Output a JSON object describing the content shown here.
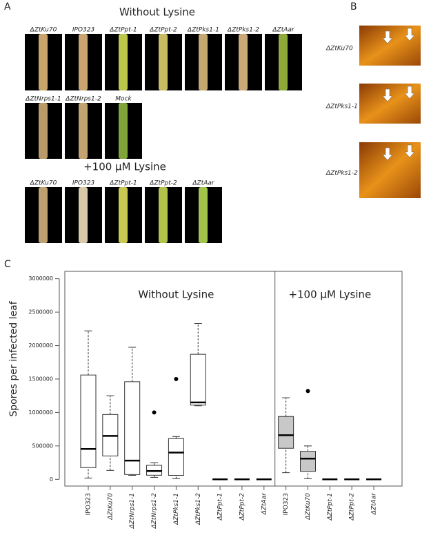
{
  "panels": {
    "a": "A",
    "b": "B",
    "c": "C"
  },
  "panel_a": {
    "without_title": "Without Lysine",
    "without_labels": [
      "ΔZtKu70",
      "IPO323",
      "ΔZtPpt-1",
      "ΔZtPpt-2",
      "ΔZtPks1-1",
      "ΔZtPks1-2",
      "ΔZtAar",
      "ΔZtNrps1-1",
      "ΔZtNrps1-2",
      "Mock"
    ],
    "with_title": "+100 µM Lysine",
    "with_labels": [
      "ΔZtKu70",
      "IPO323",
      "ΔZtPpt-1",
      "ΔZtPpt-2",
      "ΔZtAar"
    ]
  },
  "panel_b": {
    "labels": [
      "ΔZtKu70",
      "ΔZtPks1-1",
      "ΔZtPks1-2"
    ]
  },
  "chart_data": {
    "type": "box",
    "y_label": "Spores per infected leaf",
    "ylim": [
      -100000,
      3110000
    ],
    "yticks": [
      0,
      500000,
      1000000,
      1500000,
      2000000,
      2500000,
      3000000
    ],
    "groups": [
      {
        "label": "Without Lysine",
        "color": "#ffffff",
        "categories": [
          "IPO323",
          "ΔZtKu70",
          "ΔZtNrps1-1",
          "ΔZtNrps1-2",
          "ΔZtPks1-1",
          "ΔZtPks1-2",
          "ΔZtPpt-1",
          "ΔZtPpt-2",
          "ΔZtAar"
        ],
        "boxes": [
          {
            "min": 20000,
            "q1": 176000,
            "median": 455000,
            "q3": 1560000,
            "max": 2220000,
            "outliers": []
          },
          {
            "min": 134000,
            "q1": 350000,
            "median": 650000,
            "q3": 970000,
            "max": 1250000,
            "outliers": []
          },
          {
            "min": 60000,
            "q1": 72000,
            "median": 280000,
            "q3": 1460000,
            "max": 1975000,
            "outliers": []
          },
          {
            "min": 30000,
            "q1": 62000,
            "median": 124000,
            "q3": 210000,
            "max": 250000,
            "outliers": [
              1000000
            ]
          },
          {
            "min": 10000,
            "q1": 60000,
            "median": 400000,
            "q3": 610000,
            "max": 640000,
            "outliers": [
              1500000
            ]
          },
          {
            "min": 1100000,
            "q1": 1110000,
            "median": 1150000,
            "q3": 1870000,
            "max": 2330000,
            "outliers": []
          },
          {
            "min": 0,
            "q1": 0,
            "median": 0,
            "q3": 0,
            "max": 0,
            "outliers": []
          },
          {
            "min": 0,
            "q1": 0,
            "median": 0,
            "q3": 0,
            "max": 0,
            "outliers": []
          },
          {
            "min": 0,
            "q1": 0,
            "median": 0,
            "q3": 0,
            "max": 0,
            "outliers": []
          }
        ]
      },
      {
        "label": "+100 µM Lysine",
        "color": "#c8c8c8",
        "categories": [
          "IPO323",
          "ΔZtKu70",
          "ΔZtPpt-1",
          "ΔZtPpt-2",
          "ΔZtAar"
        ],
        "boxes": [
          {
            "min": 100000,
            "q1": 465000,
            "median": 660000,
            "q3": 940000,
            "max": 1220000,
            "outliers": []
          },
          {
            "min": 10000,
            "q1": 120000,
            "median": 310000,
            "q3": 420000,
            "max": 500000,
            "outliers": [
              1320000
            ]
          },
          {
            "min": 0,
            "q1": 0,
            "median": 0,
            "q3": 0,
            "max": 0,
            "outliers": []
          },
          {
            "min": 0,
            "q1": 0,
            "median": 0,
            "q3": 0,
            "max": 0,
            "outliers": []
          },
          {
            "min": 0,
            "q1": 0,
            "median": 0,
            "q3": 0,
            "max": 0,
            "outliers": []
          }
        ]
      }
    ]
  }
}
